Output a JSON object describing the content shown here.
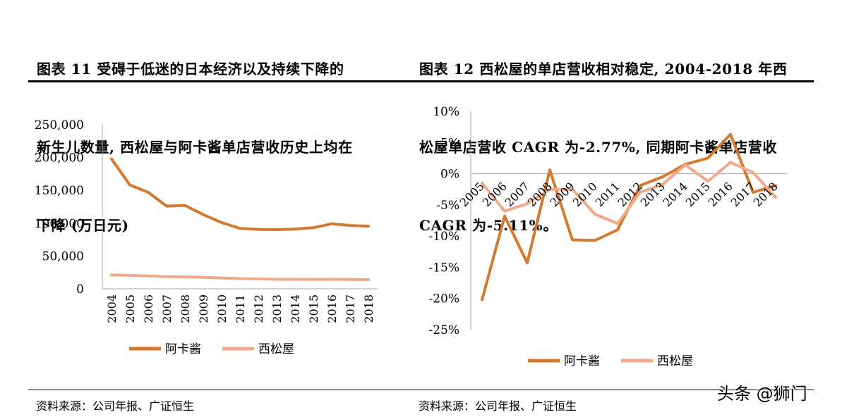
{
  "left_title_lines": [
    "图表  11  受碍于低迷的日本经济以及持续下降的",
    "新生儿数量, 西松屋与阿卡酱单店营收历史上均在",
    "下降 (万日元)"
  ],
  "right_title_lines": [
    "图表  12 西松屋的单店营收相对稳定, 2004-2018 年西",
    "松屋单店营收 CAGR 为-2.77%, 同期阿卡酱单店营收",
    "CAGR 为-5.11%。"
  ],
  "source_left": "资料来源：公司年报、广证恒生",
  "source_right": "资料来源：公司年报、广证恒生",
  "watermark": "头条 @狮门",
  "colors": {
    "akachan": "#D5792F",
    "nishimatsuya": "#F0A98B",
    "axis": "#A6A6A6"
  },
  "chart_data": [
    {
      "type": "line",
      "title": "",
      "categories": [
        "2004",
        "2005",
        "2006",
        "2007",
        "2008",
        "2009",
        "2010",
        "2011",
        "2012",
        "2013",
        "2014",
        "2015",
        "2016",
        "2017",
        "2018"
      ],
      "series": [
        {
          "name": "阿卡酱",
          "values": [
            198000,
            158000,
            147000,
            126000,
            127000,
            113000,
            101000,
            92000,
            90500,
            90000,
            91000,
            93000,
            99000,
            96500,
            95500
          ]
        },
        {
          "name": "西松屋",
          "values": [
            21000,
            20500,
            19500,
            18500,
            18000,
            17500,
            16500,
            15500,
            15000,
            14500,
            14500,
            14200,
            14500,
            14300,
            14000
          ]
        }
      ],
      "yticks": [
        "0",
        "50,000",
        "100,000",
        "150,000",
        "200,000",
        "250,000"
      ],
      "ylim": [
        0,
        250000
      ],
      "legend": "bottom"
    },
    {
      "type": "line",
      "title": "",
      "categories": [
        "2005",
        "2006",
        "2007",
        "2008",
        "2009",
        "2010",
        "2011",
        "2012",
        "2013",
        "2014",
        "2015",
        "2016",
        "2017",
        "2018"
      ],
      "series": [
        {
          "name": "阿卡酱",
          "values": [
            -20.2,
            -6.8,
            -14.3,
            0.6,
            -10.6,
            -10.7,
            -9.0,
            -1.9,
            -0.5,
            1.5,
            2.5,
            6.3,
            -3.0,
            -1.9
          ]
        },
        {
          "name": "西松屋",
          "values": [
            -1.5,
            -6.0,
            -4.8,
            -2.5,
            -2.5,
            -6.5,
            -8.0,
            -3.0,
            -1.7,
            1.4,
            -1.2,
            1.8,
            0.2,
            -3.8
          ]
        }
      ],
      "yticks": [
        "-25%",
        "-20%",
        "-15%",
        "-10%",
        "-5%",
        "0%",
        "5%",
        "10%"
      ],
      "ylim": [
        -25,
        10
      ],
      "legend": "bottom"
    }
  ]
}
